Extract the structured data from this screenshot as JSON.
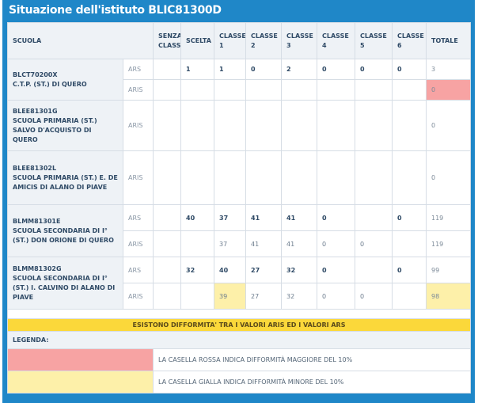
{
  "title": "Situazione dell'istituto BLIC81300D",
  "table": {
    "headers": [
      "SCUOLA",
      "SENZA CLASSE",
      "SCELTA",
      "CLASSE 1",
      "CLASSE 2",
      "CLASSE 3",
      "CLASSE 4",
      "CLASSE 5",
      "CLASSE 6",
      "TOTALE"
    ],
    "rows": [
      {
        "code": "BLCT70200X",
        "name": "C.T.P. (ST.) DI QUERO",
        "lines": [
          {
            "type": "ARS",
            "cells": [
              null,
              1,
              1,
              0,
              2,
              0,
              0,
              0,
              3
            ]
          },
          {
            "type": "ARIS",
            "cells": [
              null,
              null,
              null,
              null,
              null,
              null,
              null,
              null,
              0
            ],
            "highlights": [
              {
                "col": 8,
                "color": "#f7a3a3"
              }
            ]
          }
        ]
      },
      {
        "code": "BLEE81301G",
        "name": "SCUOLA PRIMARIA (ST.) SALVO D'ACQUISTO DI QUERO",
        "lines": [
          {
            "type": "ARIS",
            "cells": [
              null,
              null,
              null,
              null,
              null,
              null,
              null,
              null,
              0
            ]
          }
        ]
      },
      {
        "code": "BLEE81302L",
        "name": "SCUOLA PRIMARIA (ST.) E. DE AMICIS DI ALANO DI PIAVE",
        "lines": [
          {
            "type": "ARIS",
            "cells": [
              null,
              null,
              null,
              null,
              null,
              null,
              null,
              null,
              0
            ]
          }
        ]
      },
      {
        "code": "BLMM81301E",
        "name": "SCUOLA SECONDARIA DI I° (ST.) DON ORIONE DI QUERO",
        "lines": [
          {
            "type": "ARS",
            "cells": [
              null,
              40,
              37,
              41,
              41,
              0,
              null,
              0,
              119
            ]
          },
          {
            "type": "ARIS",
            "cells": [
              null,
              null,
              37,
              41,
              41,
              0,
              0,
              null,
              119
            ]
          }
        ]
      },
      {
        "code": "BLMM81302G",
        "name": "SCUOLA SECONDARIA DI I° (ST.) I. CALVINO DI ALANO DI PIAVE",
        "lines": [
          {
            "type": "ARS",
            "cells": [
              null,
              32,
              40,
              27,
              32,
              0,
              null,
              0,
              99
            ]
          },
          {
            "type": "ARIS",
            "cells": [
              null,
              null,
              39,
              27,
              32,
              0,
              0,
              null,
              98
            ],
            "highlights": [
              {
                "col": 2,
                "color": "#fdf0a9"
              },
              {
                "col": 8,
                "color": "#fdf0a9"
              }
            ]
          }
        ]
      }
    ],
    "banner": "ESISTONO DIFFORMITA' TRA I VALORI ARIS ED I VALORI ARS",
    "legend": {
      "title": "LEGENDA:",
      "items": [
        {
          "color": "#f7a3a3",
          "text": "LA CASELLA ROSSA INDICA DIFFORMITÀ MAGGIORE DEL 10%"
        },
        {
          "color": "#fdf0a9",
          "text": "LA CASELLA GIALLA INDICA DIFFORMITÀ MINORE DEL 10%"
        }
      ]
    }
  }
}
